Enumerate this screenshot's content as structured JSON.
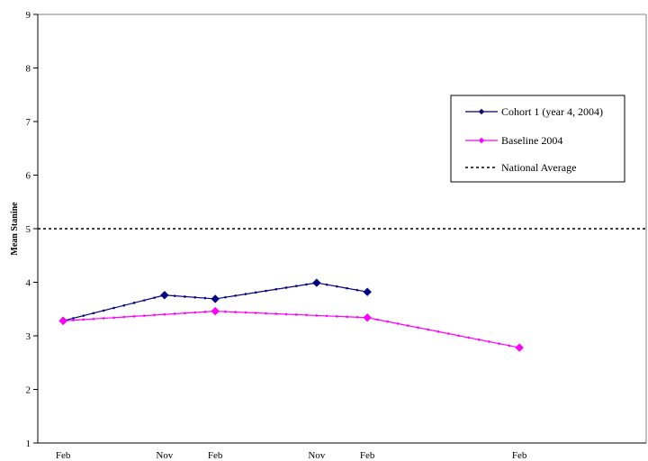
{
  "chart_data": {
    "type": "line",
    "title": "",
    "xlabel": "",
    "ylabel": "Mean Stanine",
    "ylim": [
      1,
      9
    ],
    "yticks": [
      1,
      2,
      3,
      4,
      5,
      6,
      7,
      8,
      9
    ],
    "x_slots": 12,
    "xticks": [
      {
        "slot": 0,
        "label": "Feb"
      },
      {
        "slot": 2,
        "label": "Nov"
      },
      {
        "slot": 3,
        "label": "Feb"
      },
      {
        "slot": 5,
        "label": "Nov"
      },
      {
        "slot": 6,
        "label": "Feb"
      },
      {
        "slot": 9,
        "label": "Feb"
      }
    ],
    "grid": false,
    "legend_position": "right",
    "series": [
      {
        "name": "Cohort 1 (year 4, 2004)",
        "color": "#000080",
        "marker": "diamond",
        "points": [
          {
            "slot": 0,
            "y": 3.28
          },
          {
            "slot": 2,
            "y": 3.76
          },
          {
            "slot": 3,
            "y": 3.69
          },
          {
            "slot": 5,
            "y": 3.99
          },
          {
            "slot": 6,
            "y": 3.82
          }
        ]
      },
      {
        "name": "Baseline 2004",
        "color": "#ff00ff",
        "marker": "diamond",
        "points": [
          {
            "slot": 0,
            "y": 3.28
          },
          {
            "slot": 3,
            "y": 3.46
          },
          {
            "slot": 6,
            "y": 3.34
          },
          {
            "slot": 9,
            "y": 2.78
          }
        ]
      },
      {
        "name": "National Average",
        "color": "#000000",
        "style": "dotted",
        "constant": 5
      }
    ]
  }
}
